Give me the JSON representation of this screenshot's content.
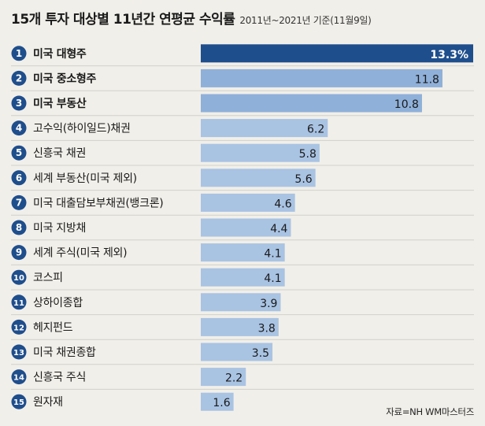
{
  "chart_data": {
    "type": "bar",
    "orientation": "horizontal",
    "title": "15개 투자 대상별 11년간 연평균 수익률",
    "subtitle": "2011년~2021년 기준(11월9일)",
    "source": "자료=NH WM마스터즈",
    "unit": "%",
    "xlim": [
      0,
      13.3
    ],
    "categories": [
      "미국 대형주",
      "미국 중소형주",
      "미국 부동산",
      "고수익(하이일드)채권",
      "신흥국 채권",
      "세계 부동산(미국 제외)",
      "미국 대출담보부채권(뱅크론)",
      "미국 지방채",
      "세계 주식(미국 제외)",
      "코스피",
      "상하이종합",
      "헤지펀드",
      "미국 채권종합",
      "신흥국 주식",
      "원자재"
    ],
    "values": [
      13.3,
      11.8,
      10.8,
      6.2,
      5.8,
      5.6,
      4.6,
      4.4,
      4.1,
      4.1,
      3.9,
      3.8,
      3.5,
      2.2,
      1.6
    ],
    "value_labels": [
      "13.3%",
      "11.8",
      "10.8",
      "6.2",
      "5.8",
      "5.6",
      "4.6",
      "4.4",
      "4.1",
      "4.1",
      "3.9",
      "3.8",
      "3.5",
      "2.2",
      "1.6"
    ],
    "ranks": [
      "1",
      "2",
      "3",
      "4",
      "5",
      "6",
      "7",
      "8",
      "9",
      "10",
      "11",
      "12",
      "13",
      "14",
      "15"
    ],
    "bold_top": 3,
    "colors": {
      "highlight": "#1f4e8c",
      "bar": "#a9c3e3",
      "bar_top": "#8fb0d9",
      "circle": "#1f4e8c",
      "background": "#f1efe9",
      "separator": "#d2d0ca"
    }
  }
}
